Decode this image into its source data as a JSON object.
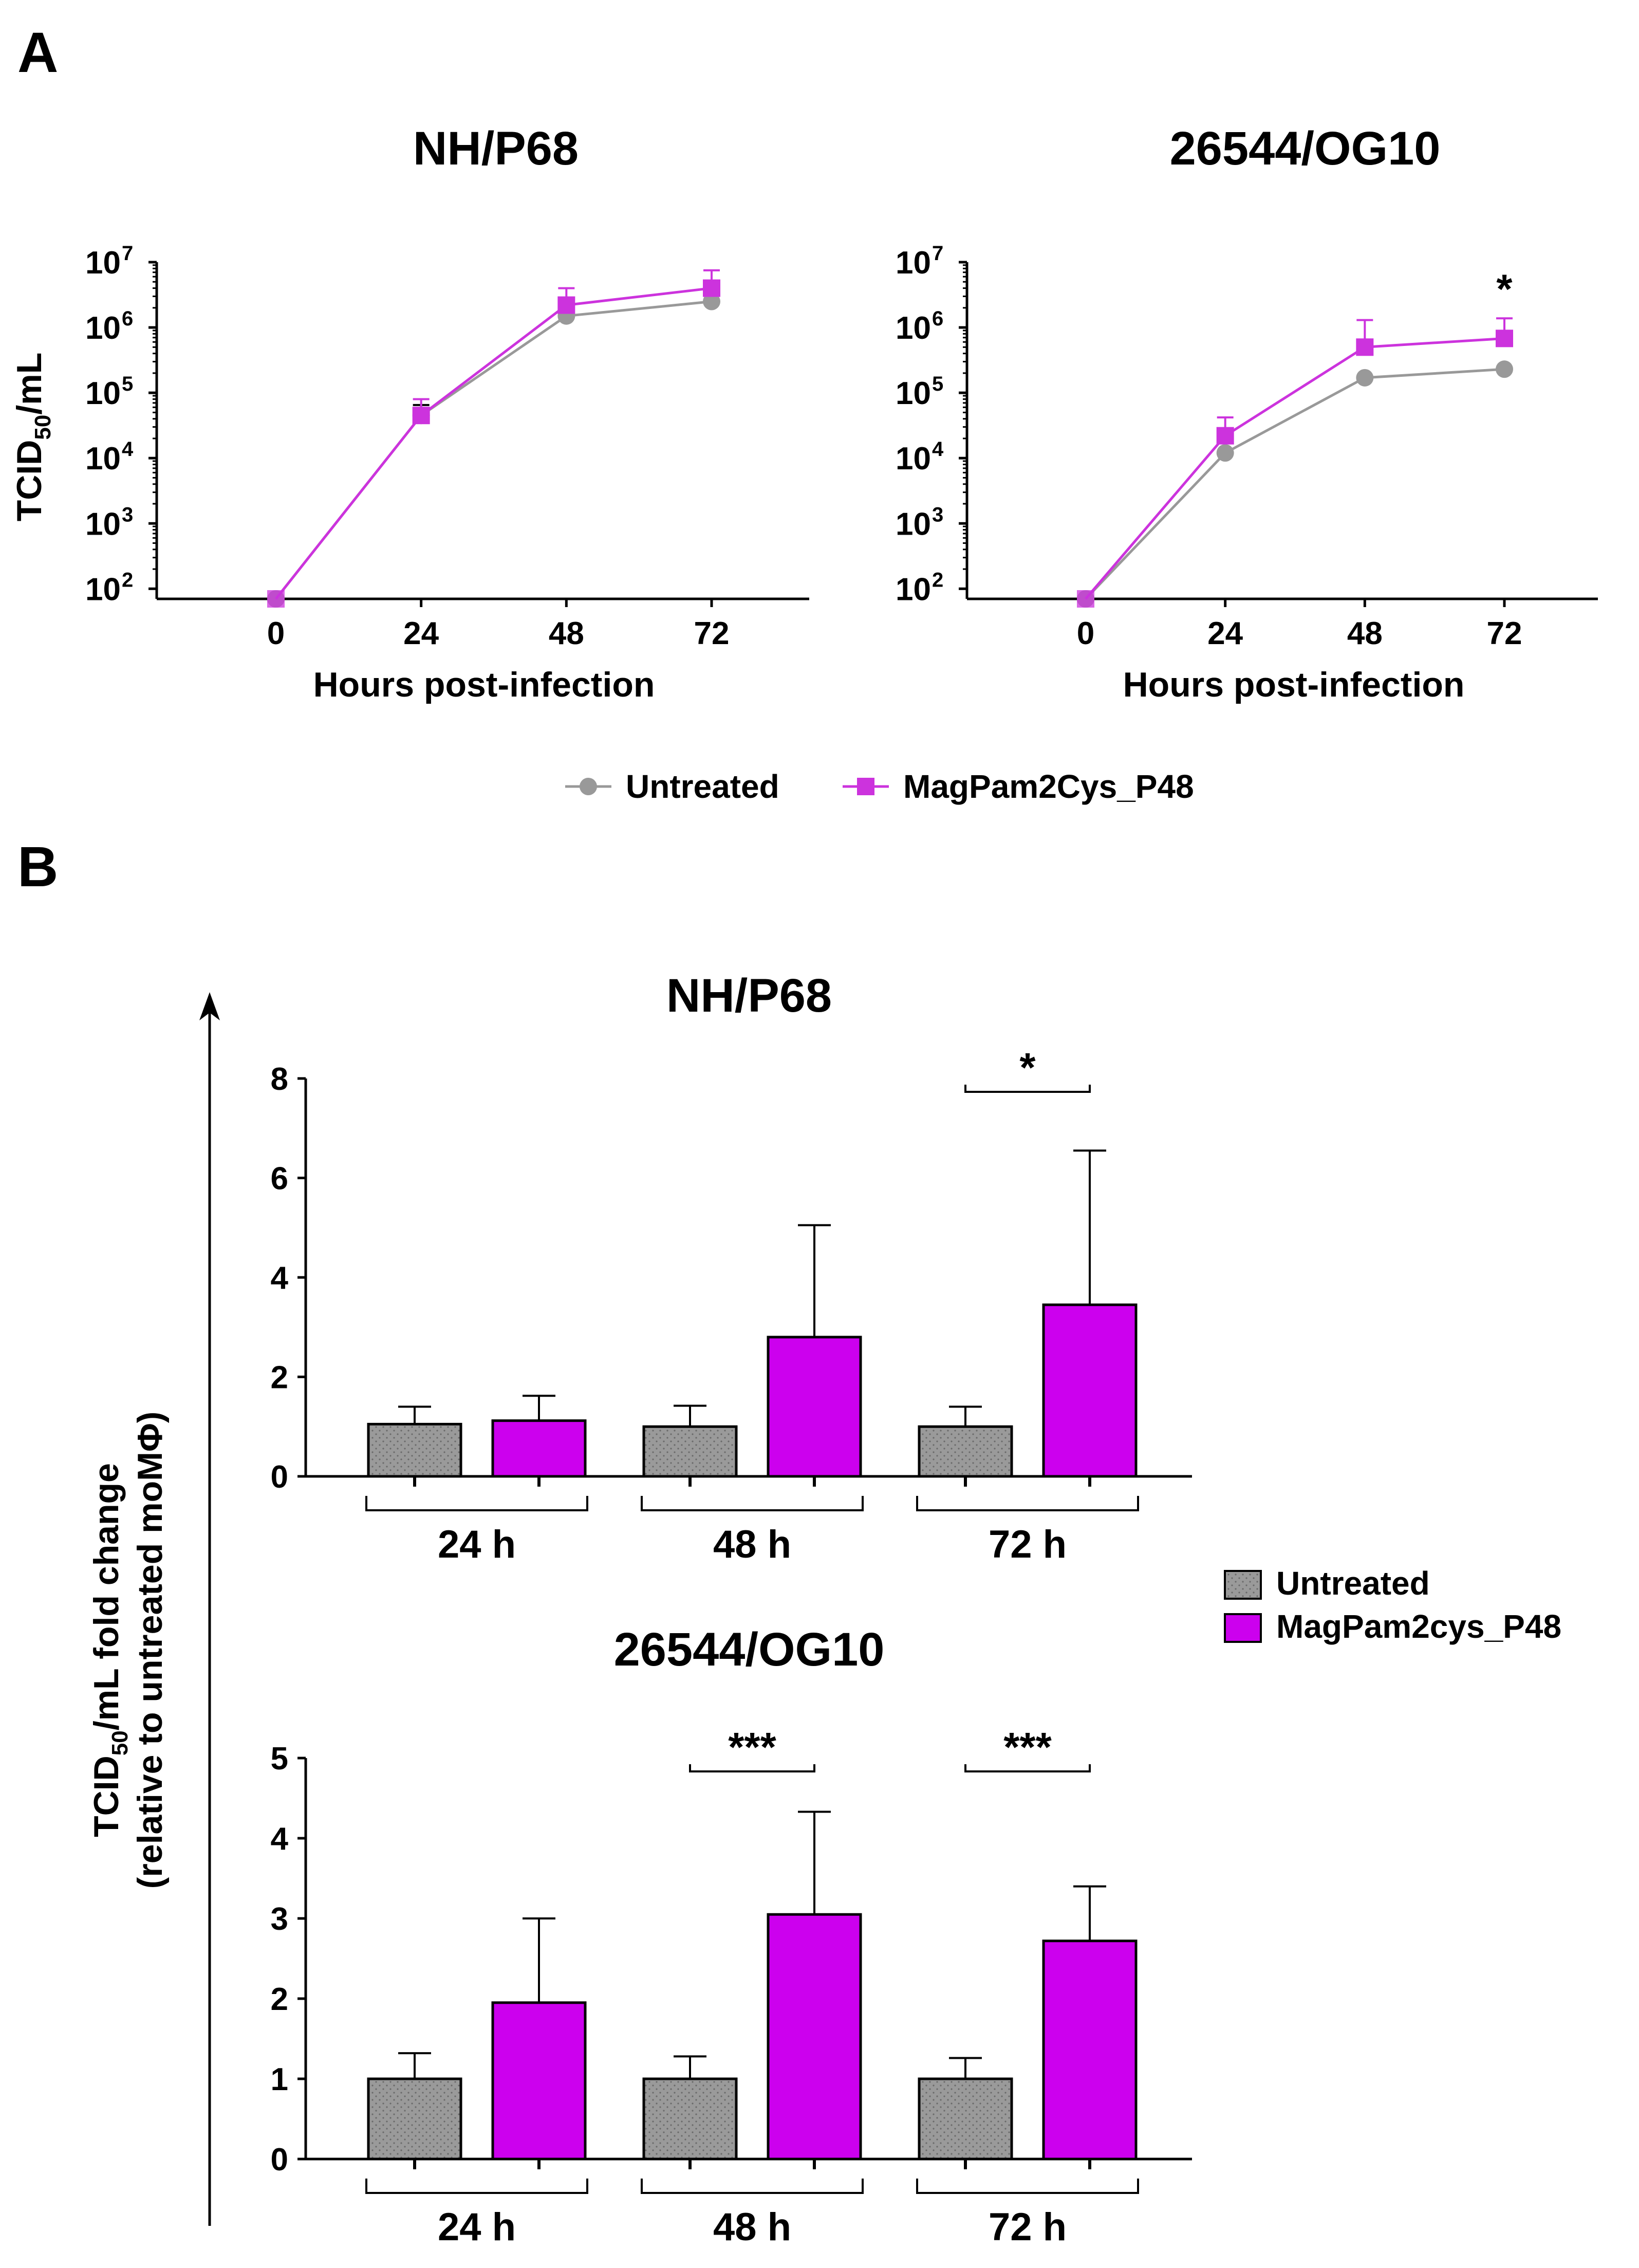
{
  "panel_letters": {
    "a": "A",
    "b": "B"
  },
  "colors": {
    "untreated": "#999999",
    "treated": "#cc33dd",
    "treated_bar": "#cc00ee",
    "untreated_bar": "#9a9a9a"
  },
  "chart_data": [
    {
      "id": "A1",
      "type": "line",
      "title": "NH/P68",
      "xlabel": "Hours post-infection",
      "ylabel_main": "TCID",
      "ylabel_sub": "50",
      "ylabel_tail": "/mL",
      "yscale": "log",
      "ylim": [
        70,
        10000000
      ],
      "y_tick_base": "10",
      "y_tick_exps": [
        "2",
        "3",
        "4",
        "5",
        "6",
        "7"
      ],
      "x": [
        0,
        24,
        48,
        72
      ],
      "x_tick_labels": [
        "0",
        "24",
        "48",
        "72"
      ],
      "series": [
        {
          "name": "Untreated",
          "marker": "circle",
          "values": [
            70,
            45000,
            1500000,
            2500000
          ],
          "err": [
            0,
            20000,
            1000000,
            600000
          ]
        },
        {
          "name": "MagPam2Cys_P48",
          "marker": "square",
          "values": [
            70,
            45000,
            2200000,
            4000000
          ],
          "err": [
            0,
            35000,
            1800000,
            3500000
          ]
        }
      ],
      "annotations": []
    },
    {
      "id": "A2",
      "type": "line",
      "title": "26544/OG10",
      "xlabel": "Hours post-infection",
      "yscale": "log",
      "ylim": [
        70,
        10000000
      ],
      "y_tick_base": "10",
      "y_tick_exps": [
        "2",
        "3",
        "4",
        "5",
        "6",
        "7"
      ],
      "x": [
        0,
        24,
        48,
        72
      ],
      "x_tick_labels": [
        "0",
        "24",
        "48",
        "72"
      ],
      "series": [
        {
          "name": "Untreated",
          "marker": "circle",
          "values": [
            70,
            12000,
            170000,
            230000
          ],
          "err": [
            0,
            0,
            0,
            0
          ]
        },
        {
          "name": "MagPam2Cys_P48",
          "marker": "square",
          "values": [
            70,
            22000,
            500000,
            680000
          ],
          "err": [
            0,
            20000,
            800000,
            700000
          ]
        }
      ],
      "annotations": [
        {
          "x": 72,
          "text": "*"
        }
      ]
    },
    {
      "id": "B1",
      "type": "bar",
      "title": "NH/P68",
      "categories": [
        "24 h",
        "48 h",
        "72 h"
      ],
      "ylim": [
        0,
        8
      ],
      "yticks": [
        "0",
        "2",
        "4",
        "6",
        "8"
      ],
      "series": [
        {
          "name": "Untreated",
          "values": [
            1.05,
            1.0,
            1.0
          ],
          "err": [
            0.35,
            0.42,
            0.4
          ]
        },
        {
          "name": "MagPam2cys_P48",
          "values": [
            1.12,
            2.8,
            3.45
          ],
          "err": [
            0.5,
            2.25,
            3.1
          ]
        }
      ],
      "significance": [
        {
          "category": "72 h",
          "text": "*"
        }
      ]
    },
    {
      "id": "B2",
      "type": "bar",
      "title": "26544/OG10",
      "categories": [
        "24 h",
        "48 h",
        "72 h"
      ],
      "ylim": [
        0,
        5
      ],
      "yticks": [
        "0",
        "1",
        "2",
        "3",
        "4",
        "5"
      ],
      "series": [
        {
          "name": "Untreated",
          "values": [
            1.0,
            1.0,
            1.0
          ],
          "err": [
            0.32,
            0.28,
            0.26
          ]
        },
        {
          "name": "MagPam2cys_P48",
          "values": [
            1.95,
            3.05,
            2.72
          ],
          "err": [
            1.05,
            1.28,
            0.68
          ]
        }
      ],
      "significance": [
        {
          "category": "48 h",
          "text": "***"
        },
        {
          "category": "72 h",
          "text": "***"
        }
      ]
    }
  ],
  "legend_a": {
    "untreated": "Untreated",
    "treated": "MagPam2Cys_P48"
  },
  "legend_b": {
    "untreated": "Untreated",
    "treated": "MagPam2cys_P48"
  },
  "b_ylabel": {
    "line1_main": "TCID",
    "line1_sub": "50",
    "line1_tail": "/mL fold change",
    "line2_main": "(relative  to untreated moM",
    "line2_phi": "Φ",
    "line2_tail": ")"
  }
}
